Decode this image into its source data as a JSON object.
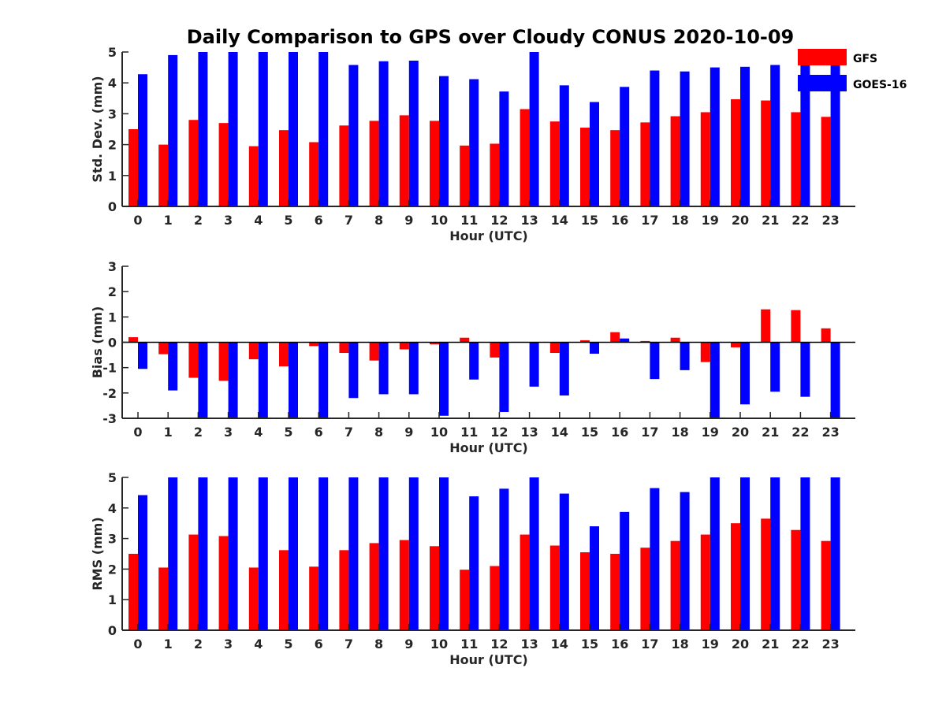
{
  "figure": {
    "title": "Daily Comparison to GPS over Cloudy CONUS 2020-10-09"
  },
  "legend": {
    "placement": "top-right",
    "items": [
      {
        "name": "GFS",
        "color": "#ff0000"
      },
      {
        "name": "GOES-16",
        "color": "#0000ff"
      }
    ]
  },
  "chart_data": [
    {
      "type": "bar",
      "xlabel": "Hour (UTC)",
      "ylabel": "Std. Dev. (mm)",
      "ylim": [
        0,
        5
      ],
      "yticks": [
        0,
        1,
        2,
        3,
        4,
        5
      ],
      "categories": [
        "0",
        "1",
        "2",
        "3",
        "4",
        "5",
        "6",
        "7",
        "8",
        "9",
        "10",
        "11",
        "12",
        "13",
        "14",
        "15",
        "16",
        "17",
        "18",
        "19",
        "20",
        "21",
        "22",
        "23"
      ],
      "series": [
        {
          "name": "GFS",
          "color": "#ff0000",
          "values": [
            2.5,
            2.0,
            2.8,
            2.7,
            1.95,
            2.47,
            2.08,
            2.62,
            2.77,
            2.95,
            2.77,
            1.97,
            2.03,
            3.15,
            2.75,
            2.55,
            2.47,
            2.72,
            2.92,
            3.05,
            3.47,
            3.43,
            3.05,
            2.9
          ]
        },
        {
          "name": "GOES-16",
          "color": "#0000ff",
          "values": [
            4.28,
            4.9,
            5.0,
            5.0,
            5.0,
            5.0,
            5.0,
            4.58,
            4.7,
            4.72,
            4.22,
            4.12,
            3.72,
            5.0,
            3.92,
            3.38,
            3.87,
            4.4,
            4.37,
            4.5,
            4.52,
            4.58,
            5.0,
            5.0
          ]
        }
      ]
    },
    {
      "type": "bar",
      "xlabel": "Hour (UTC)",
      "ylabel": "Bias (mm)",
      "ylim": [
        -3,
        3
      ],
      "yticks": [
        -3,
        -2,
        -1,
        0,
        1,
        2,
        3
      ],
      "categories": [
        "0",
        "1",
        "2",
        "3",
        "4",
        "5",
        "6",
        "7",
        "8",
        "9",
        "10",
        "11",
        "12",
        "13",
        "14",
        "15",
        "16",
        "17",
        "18",
        "19",
        "20",
        "21",
        "22",
        "23"
      ],
      "series": [
        {
          "name": "GFS",
          "color": "#ff0000",
          "values": [
            0.2,
            -0.47,
            -1.4,
            -1.52,
            -0.67,
            -0.95,
            -0.15,
            -0.42,
            -0.72,
            -0.28,
            -0.08,
            0.18,
            -0.6,
            0.0,
            -0.42,
            0.08,
            0.4,
            0.05,
            0.18,
            -0.78,
            -0.2,
            1.3,
            1.27,
            0.55
          ]
        },
        {
          "name": "GOES-16",
          "color": "#0000ff",
          "values": [
            -1.05,
            -1.9,
            -3.0,
            -3.0,
            -3.0,
            -3.0,
            -3.0,
            -2.2,
            -2.05,
            -2.05,
            -2.9,
            -1.47,
            -2.75,
            -1.75,
            -2.1,
            -0.45,
            0.15,
            -1.45,
            -1.1,
            -3.0,
            -2.45,
            -1.95,
            -2.15,
            -3.0
          ]
        }
      ]
    },
    {
      "type": "bar",
      "xlabel": "Hour (UTC)",
      "ylabel": "RMS (mm)",
      "ylim": [
        0,
        5
      ],
      "yticks": [
        0,
        1,
        2,
        3,
        4,
        5
      ],
      "categories": [
        "0",
        "1",
        "2",
        "3",
        "4",
        "5",
        "6",
        "7",
        "8",
        "9",
        "10",
        "11",
        "12",
        "13",
        "14",
        "15",
        "16",
        "17",
        "18",
        "19",
        "20",
        "21",
        "22",
        "23"
      ],
      "series": [
        {
          "name": "GFS",
          "color": "#ff0000",
          "values": [
            2.5,
            2.05,
            3.13,
            3.08,
            2.05,
            2.62,
            2.08,
            2.62,
            2.85,
            2.95,
            2.75,
            1.98,
            2.1,
            3.13,
            2.77,
            2.55,
            2.5,
            2.7,
            2.92,
            3.13,
            3.5,
            3.65,
            3.28,
            2.92
          ]
        },
        {
          "name": "GOES-16",
          "color": "#0000ff",
          "values": [
            4.42,
            5.0,
            5.0,
            5.0,
            5.0,
            5.0,
            5.0,
            5.0,
            5.0,
            5.0,
            5.0,
            4.38,
            4.63,
            5.0,
            4.47,
            3.4,
            3.87,
            4.65,
            4.52,
            5.0,
            5.0,
            5.0,
            5.0,
            5.0
          ]
        }
      ]
    }
  ]
}
